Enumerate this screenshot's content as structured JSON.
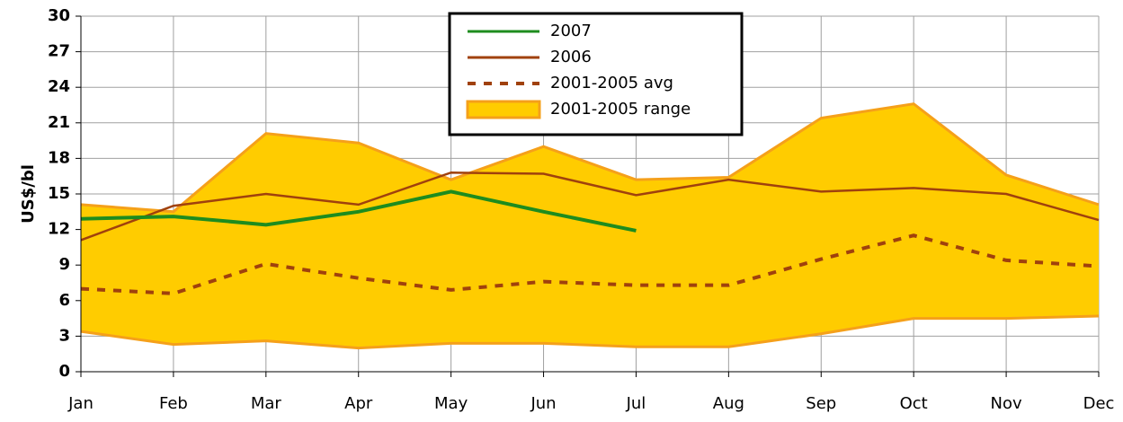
{
  "chart_data": {
    "type": "line",
    "y_label": "US$/bl",
    "categories": [
      "Jan",
      "Feb",
      "Mar",
      "Apr",
      "May",
      "Jun",
      "Jul",
      "Aug",
      "Sep",
      "Oct",
      "Nov",
      "Dec"
    ],
    "ylim": [
      0,
      30
    ],
    "yticks": [
      0,
      3,
      6,
      9,
      12,
      15,
      18,
      21,
      24,
      27,
      30
    ],
    "grid": true,
    "legend": "top-center",
    "series": [
      {
        "name": "2007",
        "color": "#1e8c1e",
        "style": "solid",
        "width": 4,
        "values": [
          12.9,
          13.1,
          12.4,
          13.5,
          15.2,
          13.5,
          11.9,
          null,
          null,
          null,
          null,
          null
        ]
      },
      {
        "name": "2006",
        "color": "#a0410d",
        "style": "solid",
        "width": 2.5,
        "values": [
          11.1,
          14.0,
          15.0,
          14.1,
          16.8,
          16.7,
          14.9,
          16.2,
          15.2,
          15.5,
          15.0,
          12.8
        ]
      },
      {
        "name": "2001-2005 avg",
        "color": "#a0410d",
        "style": "dashed",
        "width": 4,
        "values": [
          7.0,
          6.6,
          9.1,
          7.9,
          6.9,
          7.6,
          7.3,
          7.3,
          9.5,
          11.5,
          9.4,
          8.9
        ]
      },
      {
        "name": "2001-2005 range",
        "color": "#ffcc00",
        "edge_color": "#f5a01a",
        "style": "band",
        "values": [
          14.1,
          13.5,
          20.1,
          19.3,
          16.2,
          19.0,
          16.2,
          16.4,
          21.4,
          22.6,
          16.6,
          14.1
        ],
        "lower": [
          3.4,
          2.3,
          2.6,
          2.0,
          2.4,
          2.4,
          2.1,
          2.1,
          3.2,
          4.5,
          4.5,
          4.7
        ]
      }
    ]
  }
}
